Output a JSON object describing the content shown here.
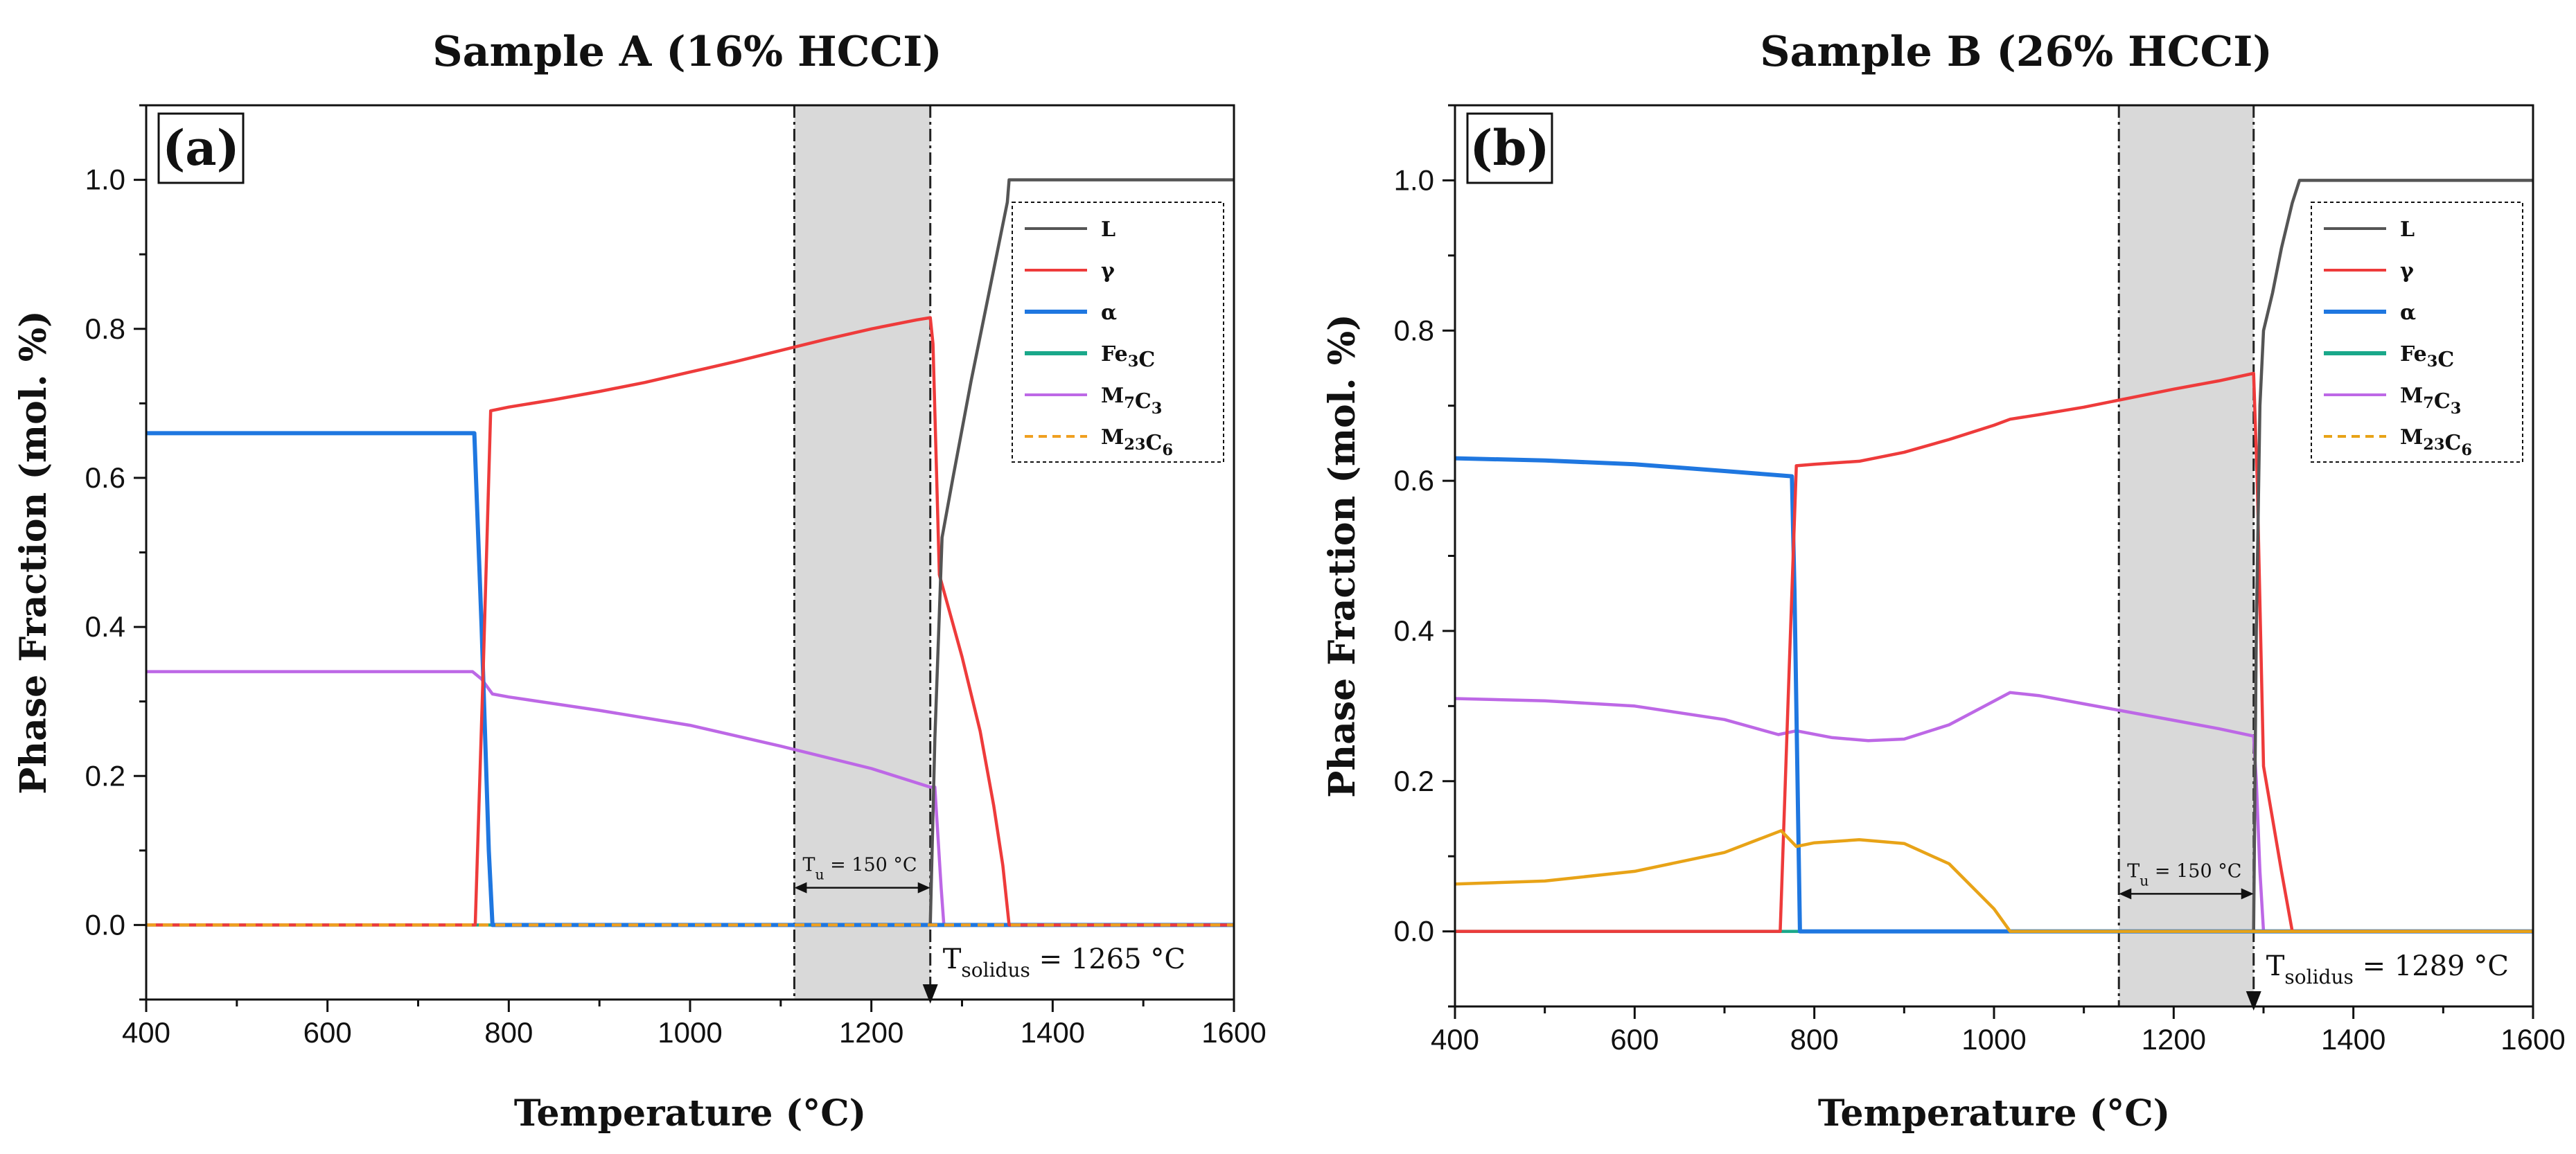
{
  "chart_data": [
    {
      "panel": "(a)",
      "type": "line",
      "title": "Sample A (16% HCCI)",
      "xlabel": "Temperature (°C)",
      "ylabel": "Phase Fraction (mol. %)",
      "xlim": [
        400,
        1600
      ],
      "ylim": [
        -0.1,
        1.1
      ],
      "xticks": [
        400,
        600,
        800,
        1000,
        1200,
        1400,
        1600
      ],
      "yticks": [
        "0.0",
        "0.2",
        "0.4",
        "0.6",
        "0.8",
        "1.0"
      ],
      "legend_position": "top-right",
      "legend": [
        "L",
        "γ",
        "α",
        "Fe3C",
        "M7C3",
        "M23C6"
      ],
      "shaded_region": [
        1115,
        1265
      ],
      "range_annotation": {
        "label": "T",
        "sub": "u",
        "suffix": " = 150 °C",
        "from": 1115,
        "to": 1265,
        "y": 0.05
      },
      "solidus_annotation": {
        "label": "T",
        "sub": "solidus",
        "suffix": " = 1265 °C",
        "x": 1265
      },
      "series": [
        {
          "name": "L",
          "color": "#555555",
          "x": [
            1265,
            1270,
            1278,
            1290,
            1310,
            1330,
            1350,
            1352,
            1600
          ],
          "y": [
            0.0,
            0.25,
            0.52,
            0.6,
            0.73,
            0.85,
            0.97,
            1.0,
            1.0
          ]
        },
        {
          "name": "γ",
          "color": "#ee3b3b",
          "x": [
            400,
            763,
            772,
            780,
            800,
            850,
            900,
            950,
            1000,
            1050,
            1100,
            1150,
            1200,
            1250,
            1265,
            1268,
            1275,
            1300,
            1320,
            1335,
            1345,
            1352,
            1600
          ],
          "y": [
            0.0,
            0.0,
            0.35,
            0.69,
            0.695,
            0.705,
            0.716,
            0.728,
            0.742,
            0.756,
            0.771,
            0.786,
            0.8,
            0.812,
            0.815,
            0.78,
            0.47,
            0.36,
            0.26,
            0.16,
            0.08,
            0.0,
            0.0
          ]
        },
        {
          "name": "α",
          "color": "#1f77e0",
          "x": [
            400,
            762,
            770,
            778,
            782,
            1600
          ],
          "y": [
            0.66,
            0.66,
            0.4,
            0.1,
            0.0,
            0.0
          ]
        },
        {
          "name": "Fe3C",
          "color": "#1aa88a",
          "x": [
            400,
            1600
          ],
          "y": [
            0.0,
            0.0
          ]
        },
        {
          "name": "M7C3",
          "color": "#bd68e6",
          "x": [
            400,
            760,
            770,
            782,
            800,
            900,
            1000,
            1100,
            1200,
            1265,
            1270,
            1277,
            1280,
            1600
          ],
          "y": [
            0.34,
            0.34,
            0.33,
            0.31,
            0.306,
            0.288,
            0.268,
            0.24,
            0.21,
            0.185,
            0.185,
            0.05,
            0.0,
            0.0
          ]
        },
        {
          "name": "M23C6",
          "color": "#f0a020",
          "dash": true,
          "x": [
            400,
            1600
          ],
          "y": [
            0.0,
            0.0
          ]
        }
      ]
    },
    {
      "panel": "(b)",
      "type": "line",
      "title": "Sample B (26% HCCI)",
      "xlabel": "Temperature (°C)",
      "ylabel": "Phase Fraction (mol. %)",
      "xlim": [
        400,
        1600
      ],
      "ylim": [
        -0.1,
        1.1
      ],
      "xticks": [
        400,
        600,
        800,
        1000,
        1200,
        1400,
        1600
      ],
      "yticks": [
        "0.0",
        "0.2",
        "0.4",
        "0.6",
        "0.8",
        "1.0"
      ],
      "legend_position": "top-right",
      "legend": [
        "L",
        "γ",
        "α",
        "Fe3C",
        "M7C3",
        "M23C6"
      ],
      "shaded_region": [
        1139,
        1289
      ],
      "range_annotation": {
        "label": "T",
        "sub": "u",
        "suffix": " = 150 °C",
        "from": 1139,
        "to": 1289,
        "y": 0.05
      },
      "solidus_annotation": {
        "label": "T",
        "sub": "solidus",
        "suffix": " = 1289 °C",
        "x": 1289
      },
      "series": [
        {
          "name": "L",
          "color": "#555555",
          "x": [
            1289,
            1292,
            1296,
            1300,
            1310,
            1320,
            1332,
            1340,
            1600
          ],
          "y": [
            0.0,
            0.4,
            0.7,
            0.8,
            0.85,
            0.91,
            0.97,
            1.0,
            1.0
          ]
        },
        {
          "name": "γ",
          "color": "#ee3b3b",
          "x": [
            400,
            762,
            772,
            780,
            800,
            850,
            900,
            950,
            1000,
            1018,
            1050,
            1100,
            1150,
            1200,
            1250,
            1289,
            1293,
            1300,
            1310,
            1320,
            1332,
            1600
          ],
          "y": [
            0.0,
            0.0,
            0.35,
            0.62,
            0.622,
            0.626,
            0.638,
            0.655,
            0.674,
            0.682,
            0.688,
            0.698,
            0.71,
            0.722,
            0.733,
            0.743,
            0.6,
            0.22,
            0.15,
            0.08,
            0.0,
            0.0
          ]
        },
        {
          "name": "α",
          "color": "#1f77e0",
          "x": [
            400,
            500,
            600,
            700,
            775,
            778,
            782,
            784,
            1600
          ],
          "y": [
            0.63,
            0.627,
            0.622,
            0.613,
            0.606,
            0.45,
            0.15,
            0.0,
            0.0
          ]
        },
        {
          "name": "Fe3C",
          "color": "#1aa88a",
          "x": [
            400,
            1600
          ],
          "y": [
            0.0,
            0.0
          ]
        },
        {
          "name": "M7C3",
          "color": "#bd68e6",
          "x": [
            400,
            500,
            600,
            700,
            760,
            780,
            820,
            860,
            900,
            950,
            1018,
            1050,
            1100,
            1150,
            1200,
            1250,
            1289,
            1292,
            1296,
            1300,
            1600
          ],
          "y": [
            0.31,
            0.307,
            0.3,
            0.282,
            0.262,
            0.267,
            0.258,
            0.254,
            0.256,
            0.275,
            0.318,
            0.314,
            0.303,
            0.292,
            0.281,
            0.27,
            0.26,
            0.2,
            0.08,
            0.0,
            0.0
          ]
        },
        {
          "name": "M23C6",
          "color": "#e8a317",
          "x": [
            400,
            500,
            600,
            700,
            763,
            780,
            800,
            850,
            900,
            950,
            1000,
            1018,
            1600
          ],
          "y": [
            0.063,
            0.067,
            0.08,
            0.105,
            0.134,
            0.113,
            0.118,
            0.122,
            0.117,
            0.09,
            0.03,
            0.0,
            0.0
          ]
        }
      ]
    }
  ]
}
